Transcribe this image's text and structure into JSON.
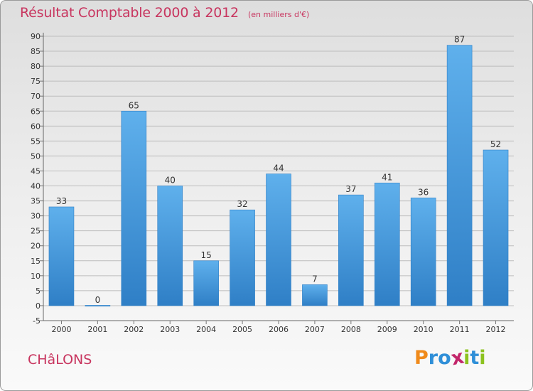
{
  "chart_data": {
    "type": "bar",
    "title": "Résultat Comptable 2000 à 2012",
    "subtitle": "(en milliers d'€)",
    "categories": [
      "2000",
      "2001",
      "2002",
      "2003",
      "2004",
      "2005",
      "2006",
      "2007",
      "2008",
      "2009",
      "2010",
      "2011",
      "2012"
    ],
    "values": [
      33,
      0,
      65,
      40,
      15,
      32,
      44,
      7,
      37,
      41,
      36,
      87,
      52
    ],
    "ylim": [
      -5,
      90
    ],
    "ytick_step": 5,
    "grid": true,
    "colors": {
      "bar": "#4a9ee0",
      "title": "#c8355f"
    }
  },
  "footer": {
    "city": "CHâLONS",
    "logo": {
      "letters": [
        "P",
        "r",
        "o",
        "x",
        "i",
        "t",
        "i"
      ],
      "colors": [
        "#f08a1a",
        "#2f8fd8",
        "#2f8fd8",
        "#c2256a",
        "#8cc21f",
        "#2f8fd8",
        "#8cc21f"
      ]
    }
  }
}
